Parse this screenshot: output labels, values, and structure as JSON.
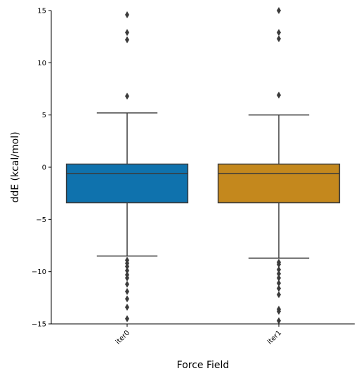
{
  "chart_data": {
    "type": "box",
    "title": "",
    "xlabel": "Force Field",
    "ylabel": "ddE (kcal/mol)",
    "ylim": [
      -15,
      15
    ],
    "yticks": [
      -15,
      -10,
      -5,
      0,
      5,
      10,
      15
    ],
    "categories": [
      "iter0",
      "iter1"
    ],
    "grid": false,
    "boxes": [
      {
        "category": "iter0",
        "color": "#0f72ad",
        "whisker_low": -8.5,
        "q1": -3.4,
        "median": -0.6,
        "q3": 0.3,
        "whisker_high": 5.2,
        "outliers": [
          14.6,
          12.9,
          12.2,
          6.8,
          -8.9,
          -9.2,
          -9.5,
          -9.9,
          -10.3,
          -10.6,
          -11.2,
          -11.9,
          -12.6,
          -13.4,
          -14.5
        ]
      },
      {
        "category": "iter1",
        "color": "#c4881d",
        "whisker_low": -8.7,
        "q1": -3.4,
        "median": -0.6,
        "q3": 0.3,
        "whisker_high": 5.0,
        "outliers": [
          15.0,
          12.9,
          12.3,
          6.9,
          -9.1,
          -9.3,
          -9.8,
          -10.2,
          -10.6,
          -11.1,
          -11.6,
          -12.2,
          -13.6,
          -13.8,
          -14.7
        ]
      }
    ]
  }
}
